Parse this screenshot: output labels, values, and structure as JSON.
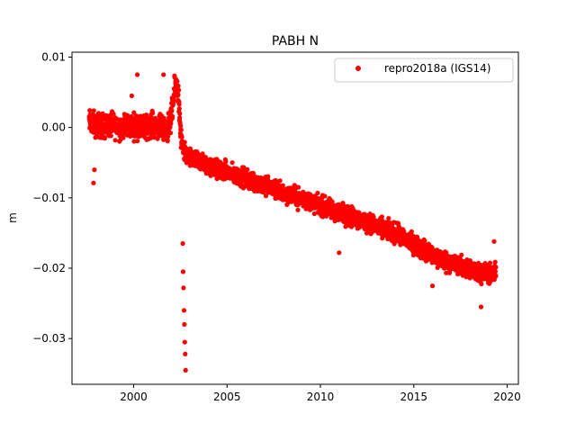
{
  "chart_data": {
    "type": "scatter",
    "title": "PABH N",
    "xlabel": "",
    "ylabel": "m",
    "xlim": [
      1996.7,
      2020.6
    ],
    "ylim": [
      -0.0365,
      0.0107
    ],
    "xticks": [
      2000,
      2005,
      2010,
      2015,
      2020
    ],
    "xtick_labels": [
      "2000",
      "2005",
      "2010",
      "2015",
      "2020"
    ],
    "yticks": [
      0.01,
      0.0,
      -0.01,
      -0.02,
      -0.03
    ],
    "ytick_labels": [
      "0.01",
      "0.00",
      "−0.01",
      "−0.02",
      "−0.03"
    ],
    "grid": false,
    "legend": {
      "position": "top-right"
    },
    "series": [
      {
        "name": "repro2018a (IGS14)",
        "color": "#ff0000",
        "marker": "circle",
        "x": [
          1997.62,
          1997.75,
          1997.9,
          1998.0,
          1998.2,
          1998.4,
          1998.6,
          1998.8,
          1999.0,
          1999.2,
          1999.4,
          1999.6,
          1999.8,
          2000.0,
          2000.2,
          2000.4,
          2000.6,
          2000.8,
          2001.0,
          2001.2,
          2001.4,
          2001.6,
          2001.8,
          2002.0,
          2002.1,
          2002.2,
          2002.3,
          2002.4,
          2002.5,
          2002.6,
          2002.7,
          2002.8,
          2002.9,
          2003.0,
          2003.2,
          2003.4,
          2003.6,
          2003.8,
          2004.0,
          2004.2,
          2004.4,
          2004.6,
          2004.8,
          2005.0,
          2005.2,
          2005.4,
          2005.6,
          2005.8,
          2006.0,
          2006.2,
          2006.4,
          2006.6,
          2006.8,
          2007.0,
          2007.2,
          2007.4,
          2007.6,
          2007.8,
          2008.0,
          2008.2,
          2008.4,
          2008.6,
          2008.8,
          2009.0,
          2009.2,
          2009.4,
          2009.6,
          2009.8,
          2010.0,
          2010.2,
          2010.4,
          2010.6,
          2010.8,
          2011.0,
          2011.2,
          2011.4,
          2011.6,
          2011.8,
          2012.0,
          2012.2,
          2012.4,
          2012.6,
          2012.8,
          2013.0,
          2013.2,
          2013.4,
          2013.6,
          2013.8,
          2014.0,
          2014.2,
          2014.4,
          2014.6,
          2014.8,
          2015.0,
          2015.2,
          2015.4,
          2015.6,
          2015.8,
          2016.0,
          2016.2,
          2016.4,
          2016.6,
          2016.8,
          2017.0,
          2017.2,
          2017.4,
          2017.6,
          2017.8,
          2018.0,
          2018.2,
          2018.4,
          2018.6,
          2018.8,
          2019.0,
          2019.2,
          2019.4
        ],
        "y": [
          0.0008,
          0.0006,
          0.0005,
          0.0004,
          0.0003,
          0.0002,
          0.0001,
          0.0003,
          0.0002,
          0.0001,
          0.0002,
          0.0004,
          0.0003,
          0.0002,
          0.0001,
          0.0,
          0.0001,
          0.0002,
          0.0004,
          0.0003,
          0.0,
          -0.0004,
          -0.0003,
          0.0012,
          0.0032,
          0.0055,
          0.0065,
          0.0045,
          -0.0005,
          -0.0028,
          -0.0035,
          -0.0038,
          -0.0042,
          -0.0045,
          -0.0046,
          -0.0048,
          -0.005,
          -0.0052,
          -0.0055,
          -0.0057,
          -0.0059,
          -0.006,
          -0.0062,
          -0.0064,
          -0.0066,
          -0.0068,
          -0.007,
          -0.0071,
          -0.0073,
          -0.0075,
          -0.0077,
          -0.0079,
          -0.008,
          -0.0082,
          -0.0084,
          -0.0086,
          -0.0088,
          -0.009,
          -0.0092,
          -0.0094,
          -0.0096,
          -0.0098,
          -0.01,
          -0.0101,
          -0.0103,
          -0.0105,
          -0.0107,
          -0.0109,
          -0.0111,
          -0.0113,
          -0.0115,
          -0.0117,
          -0.0119,
          -0.012,
          -0.0122,
          -0.0124,
          -0.0126,
          -0.0128,
          -0.013,
          -0.0132,
          -0.0134,
          -0.0136,
          -0.0138,
          -0.014,
          -0.0142,
          -0.0144,
          -0.0146,
          -0.0148,
          -0.015,
          -0.0153,
          -0.0156,
          -0.0159,
          -0.0162,
          -0.0166,
          -0.0169,
          -0.0172,
          -0.0175,
          -0.0178,
          -0.0181,
          -0.0184,
          -0.0187,
          -0.0189,
          -0.019,
          -0.0192,
          -0.0194,
          -0.0196,
          -0.0198,
          -0.02,
          -0.0202,
          -0.0204,
          -0.0205,
          -0.0206,
          -0.0207,
          -0.0208,
          -0.0209,
          -0.0208
        ],
        "spread_band_halfwidth": [
          0.0025,
          0.0025,
          0.0025,
          0.0025,
          0.0025,
          0.0025,
          0.0025,
          0.0025,
          0.0025,
          0.0025,
          0.0025,
          0.0025,
          0.0025,
          0.0025,
          0.0025,
          0.0025,
          0.0025,
          0.0025,
          0.0025,
          0.0025,
          0.0025,
          0.0025,
          0.0025,
          0.0025,
          0.0025,
          0.0025,
          0.0022,
          0.0025,
          0.0025,
          0.002,
          0.002,
          0.002,
          0.002,
          0.002,
          0.002,
          0.002,
          0.002,
          0.002,
          0.002,
          0.002,
          0.002,
          0.002,
          0.002,
          0.002,
          0.002,
          0.002,
          0.002,
          0.002,
          0.002,
          0.002,
          0.002,
          0.002,
          0.002,
          0.002,
          0.002,
          0.002,
          0.002,
          0.002,
          0.002,
          0.002,
          0.002,
          0.002,
          0.002,
          0.002,
          0.002,
          0.002,
          0.002,
          0.002,
          0.002,
          0.002,
          0.002,
          0.002,
          0.002,
          0.002,
          0.002,
          0.002,
          0.002,
          0.002,
          0.002,
          0.002,
          0.002,
          0.002,
          0.002,
          0.002,
          0.002,
          0.002,
          0.002,
          0.002,
          0.002,
          0.002,
          0.002,
          0.002,
          0.002,
          0.002,
          0.002,
          0.002,
          0.002,
          0.002,
          0.002,
          0.002,
          0.002,
          0.002,
          0.002,
          0.002,
          0.002,
          0.002,
          0.002,
          0.002,
          0.002,
          0.002,
          0.002,
          0.002,
          0.002,
          0.002,
          0.002,
          0.002
        ],
        "outliers": {
          "x": [
            1997.85,
            1997.9,
            1999.9,
            2000.2,
            2001.6,
            2002.63,
            2002.65,
            2002.67,
            2002.7,
            2002.72,
            2002.74,
            2002.76,
            2002.78,
            2011.0,
            2016.0,
            2018.6,
            2019.3
          ],
          "y": [
            -0.0079,
            -0.006,
            0.0045,
            0.0075,
            0.0075,
            -0.0165,
            -0.0205,
            -0.0228,
            -0.026,
            -0.028,
            -0.0305,
            -0.0322,
            -0.0345,
            -0.0178,
            -0.0225,
            -0.0255,
            -0.0162
          ]
        }
      }
    ]
  }
}
